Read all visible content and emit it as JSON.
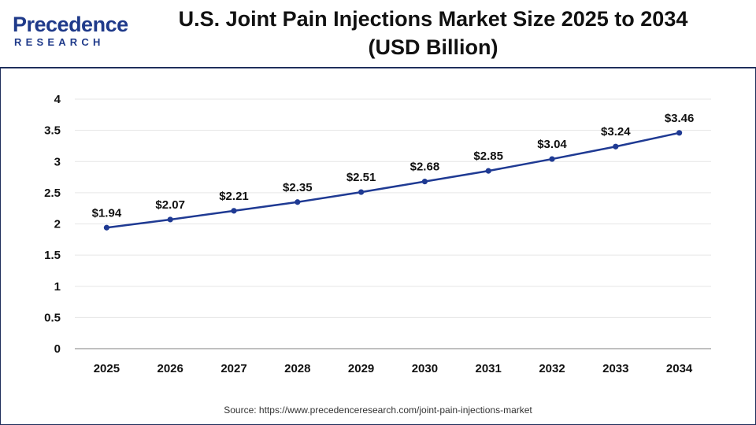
{
  "header": {
    "logo_word": "Precedence",
    "logo_sub": "RESEARCH",
    "title_line1": "U.S. Joint Pain Injections Market Size 2025 to 2034",
    "title_line2": "(USD Billion)"
  },
  "chart_data": {
    "type": "line",
    "title": "U.S. Joint Pain Injections Market Size 2025 to 2034 (USD Billion)",
    "xlabel": "",
    "ylabel": "",
    "categories": [
      "2025",
      "2026",
      "2027",
      "2028",
      "2029",
      "2030",
      "2031",
      "2032",
      "2033",
      "2034"
    ],
    "series": [
      {
        "values": [
          1.94,
          2.07,
          2.21,
          2.35,
          2.51,
          2.68,
          2.85,
          3.04,
          3.24,
          3.46
        ],
        "labels": [
          "$1.94",
          "$2.07",
          "$2.21",
          "$2.35",
          "$2.51",
          "$2.68",
          "$2.85",
          "$3.04",
          "$3.24",
          "$3.46"
        ],
        "color": "#1f3a93"
      }
    ],
    "ylim": [
      0,
      4
    ],
    "yticks": [
      "0",
      "0.5",
      "1",
      "1.5",
      "2",
      "2.5",
      "3",
      "3.5",
      "4"
    ],
    "grid": true,
    "legend": "none"
  },
  "footer": {
    "source": "Source: https://www.precedenceresearch.com/joint-pain-injections-market"
  },
  "colors": {
    "line": "#1f3a93",
    "brand": "#1f3a8a",
    "grid": "#e6e6e6",
    "border": "#1f2f5c"
  }
}
